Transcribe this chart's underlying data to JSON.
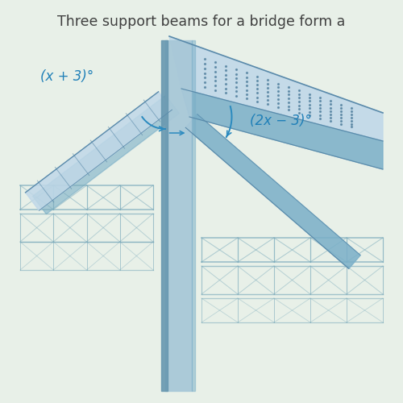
{
  "title": "Three support beams for a bridge form a",
  "title_color": "#404040",
  "title_fontsize": 12.5,
  "bg_color": "#e8f0e8",
  "angle_label_left": "(x + 3)°",
  "angle_label_right": "(2x − 3)°",
  "label_color": "#2080b8",
  "label_fontsize": 12,
  "fig_width": 5.0,
  "fig_height": 5.0,
  "dpi": 100,
  "beam_main": "#9fc5d8",
  "beam_dark": "#5a8aaa",
  "beam_light": "#c0d8e8",
  "beam_mid": "#7aafc8",
  "pillar_light": "#a8c8d8",
  "pillar_dark": "#6898b0",
  "truss_color": "#7aaabb",
  "arrow_color": "#2a8abf",
  "dot_color": "#4a7a99"
}
